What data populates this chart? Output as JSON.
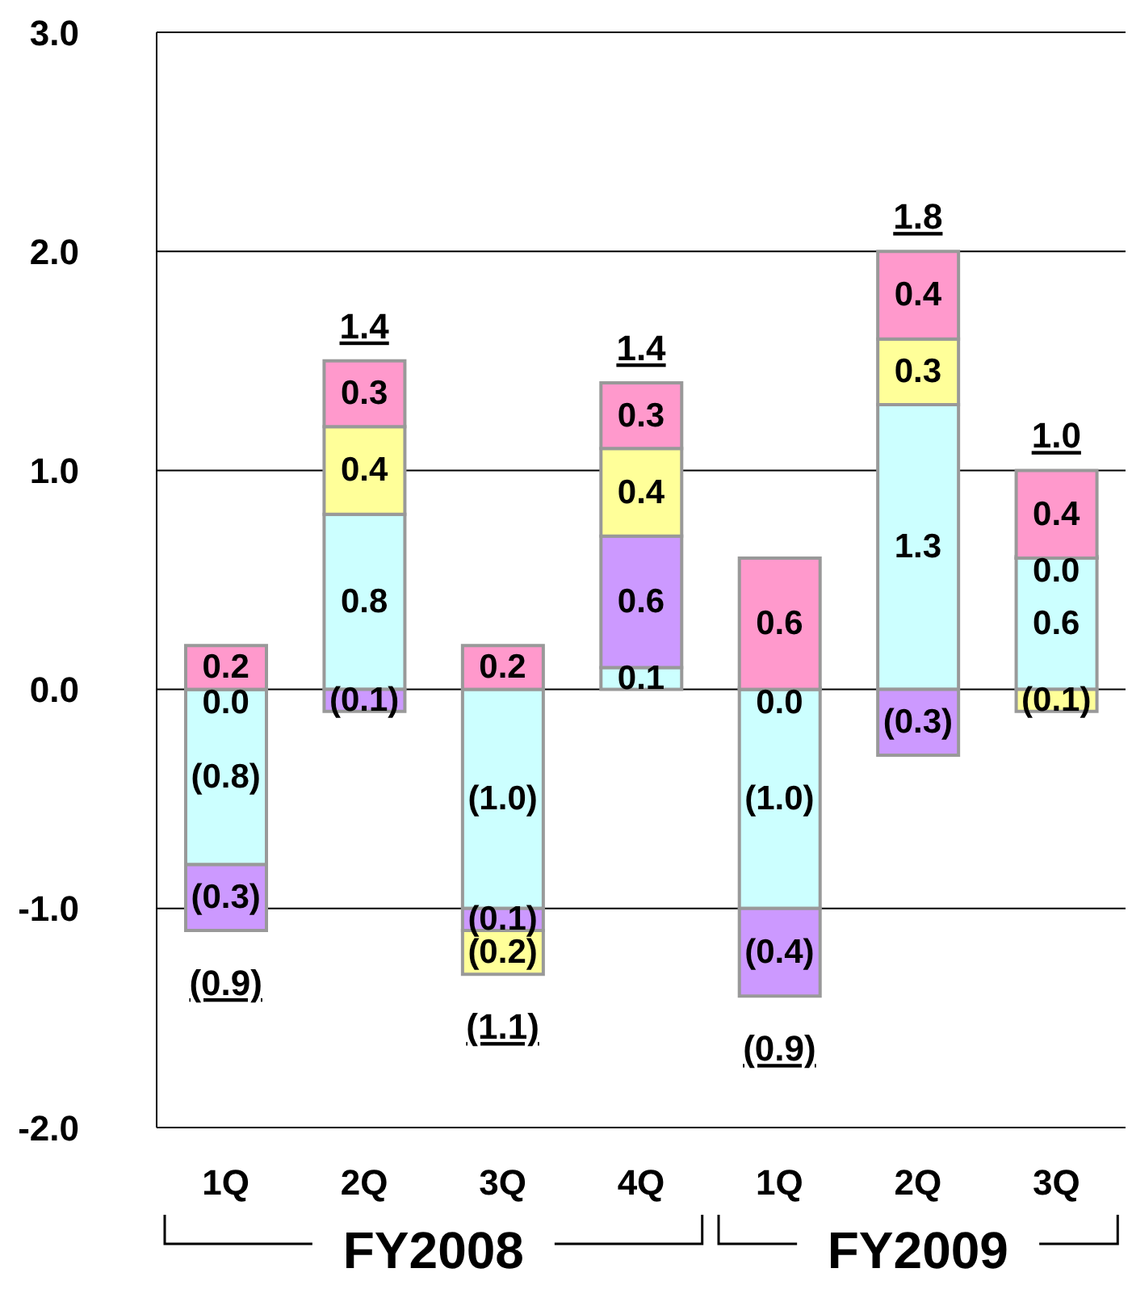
{
  "chart_data": {
    "type": "bar",
    "stacked": true,
    "categories": [
      "1Q",
      "2Q",
      "3Q",
      "4Q",
      "1Q",
      "2Q",
      "3Q"
    ],
    "series": [
      {
        "color": "#ccffff",
        "values": [
          -0.8,
          0.8,
          -1.0,
          0.1,
          -1.0,
          1.3,
          0.6
        ],
        "value_labels": [
          "(0.8)",
          "0.8",
          "(1.0)",
          "0.1",
          "(1.0)",
          "1.3",
          "0.6"
        ]
      },
      {
        "color": "#cc99ff",
        "values": [
          -0.3,
          -0.1,
          -0.1,
          0.6,
          -0.4,
          -0.3,
          0.0
        ],
        "value_labels": [
          "(0.3)",
          "(0.1)",
          "(0.1)",
          "0.6",
          "(0.4)",
          "(0.3)",
          "0.0"
        ]
      },
      {
        "color": "#ffff99",
        "values": [
          0.0,
          0.4,
          -0.2,
          0.4,
          0.0,
          0.3,
          -0.1
        ],
        "value_labels": [
          "0.0",
          "0.4",
          "(0.2)",
          "0.4",
          "0.0",
          "0.3",
          "(0.1)"
        ]
      },
      {
        "color": "#ff99cc",
        "values": [
          0.2,
          0.3,
          0.2,
          0.3,
          0.6,
          0.4,
          0.4
        ],
        "value_labels": [
          "0.2",
          "0.3",
          "0.2",
          "0.3",
          "0.6",
          "0.4",
          "0.4"
        ]
      }
    ],
    "totals": [
      "(0.9)",
      "1.4",
      "(1.1)",
      "1.4",
      "(0.9)",
      "1.8",
      "1.0"
    ],
    "ylim": [
      -2,
      3
    ],
    "yticks": [
      {
        "value": -2,
        "label": "-2.0"
      },
      {
        "value": -1,
        "label": "-1.0"
      },
      {
        "value": 0,
        "label": "0.0"
      },
      {
        "value": 1,
        "label": "1.0"
      },
      {
        "value": 2,
        "label": "2.0"
      },
      {
        "value": 3,
        "label": "3.0"
      }
    ],
    "grid": "y",
    "legend": false,
    "annotations": [
      "FY2008",
      "FY2009"
    ]
  }
}
